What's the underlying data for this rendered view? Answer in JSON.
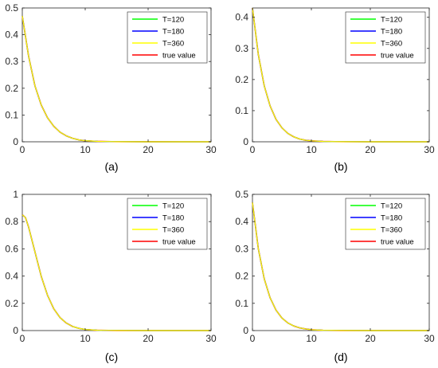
{
  "colors": {
    "T120": "#00ff00",
    "T180": "#0000ff",
    "T360": "#ffff00",
    "true_value": "#ff0000"
  },
  "chart_data": [
    {
      "type": "line",
      "caption": "(a)",
      "xlim": [
        0,
        30
      ],
      "ylim": [
        0,
        0.5
      ],
      "xticks": [
        "0",
        "10",
        "20",
        "30"
      ],
      "yticks": [
        "0",
        "0.1",
        "0.2",
        "0.3",
        "0.4",
        "0.5"
      ],
      "grid": false,
      "legend_position": "top-right",
      "x": [
        0,
        1,
        2,
        3,
        4,
        5,
        6,
        7,
        8,
        9,
        10,
        12,
        15,
        20,
        25,
        30
      ],
      "series": [
        {
          "name": "T=120",
          "color": "#00ff00",
          "values": [
            0.47,
            0.32,
            0.21,
            0.138,
            0.09,
            0.058,
            0.036,
            0.022,
            0.013,
            0.007,
            0.004,
            0.0015,
            0.0004,
            0.0001,
            0.0,
            0.0
          ]
        },
        {
          "name": "T=180",
          "color": "#0000ff",
          "values": [
            0.47,
            0.32,
            0.21,
            0.138,
            0.09,
            0.058,
            0.036,
            0.022,
            0.013,
            0.007,
            0.004,
            0.0015,
            0.0004,
            0.0001,
            0.0,
            0.0
          ]
        },
        {
          "name": "T=360",
          "color": "#ffff00",
          "values": [
            0.47,
            0.32,
            0.21,
            0.138,
            0.09,
            0.058,
            0.036,
            0.022,
            0.013,
            0.007,
            0.004,
            0.0015,
            0.0004,
            0.0001,
            0.0,
            0.0
          ]
        },
        {
          "name": "true value",
          "color": "#ff0000",
          "values": [
            0.47,
            0.32,
            0.21,
            0.138,
            0.09,
            0.058,
            0.036,
            0.022,
            0.013,
            0.007,
            0.004,
            0.0015,
            0.0004,
            0.0001,
            0.0,
            0.0
          ]
        }
      ]
    },
    {
      "type": "line",
      "caption": "(b)",
      "xlim": [
        0,
        30
      ],
      "ylim": [
        0,
        0.43
      ],
      "xticks": [
        "0",
        "10",
        "20",
        "30"
      ],
      "yticks": [
        "0",
        "0.1",
        "0.2",
        "0.3",
        "0.4"
      ],
      "grid": false,
      "legend_position": "top-right",
      "x": [
        0,
        1,
        2,
        3,
        4,
        5,
        6,
        7,
        8,
        9,
        10,
        12,
        15,
        20,
        25,
        30
      ],
      "series": [
        {
          "name": "T=120",
          "color": "#00ff00",
          "values": [
            0.43,
            0.28,
            0.18,
            0.115,
            0.072,
            0.045,
            0.027,
            0.016,
            0.009,
            0.005,
            0.003,
            0.001,
            0.0003,
            0.0,
            0.0,
            0.0
          ]
        },
        {
          "name": "T=180",
          "color": "#0000ff",
          "values": [
            0.43,
            0.28,
            0.18,
            0.115,
            0.072,
            0.045,
            0.027,
            0.016,
            0.009,
            0.005,
            0.003,
            0.001,
            0.0003,
            0.0,
            0.0,
            0.0
          ]
        },
        {
          "name": "T=360",
          "color": "#ffff00",
          "values": [
            0.43,
            0.28,
            0.18,
            0.115,
            0.072,
            0.045,
            0.027,
            0.016,
            0.009,
            0.005,
            0.003,
            0.001,
            0.0003,
            0.0,
            0.0,
            0.0
          ]
        },
        {
          "name": "true value",
          "color": "#ff0000",
          "values": [
            0.43,
            0.28,
            0.18,
            0.115,
            0.072,
            0.045,
            0.027,
            0.016,
            0.009,
            0.005,
            0.003,
            0.001,
            0.0003,
            0.0,
            0.0,
            0.0
          ]
        }
      ]
    },
    {
      "type": "line",
      "caption": "(c)",
      "xlim": [
        0,
        30
      ],
      "ylim": [
        0,
        1
      ],
      "xticks": [
        "0",
        "10",
        "20",
        "30"
      ],
      "yticks": [
        "0",
        "0.2",
        "0.4",
        "0.6",
        "0.8",
        "1"
      ],
      "grid": false,
      "legend_position": "top-right",
      "x": [
        0,
        0.5,
        1,
        2,
        3,
        4,
        5,
        6,
        7,
        8,
        9,
        10,
        12,
        15,
        20,
        25,
        30
      ],
      "series": [
        {
          "name": "T=120",
          "color": "#00ff00",
          "values": [
            0.85,
            0.83,
            0.76,
            0.58,
            0.4,
            0.26,
            0.16,
            0.095,
            0.055,
            0.03,
            0.016,
            0.008,
            0.002,
            0.0005,
            0.0,
            0.0,
            0.0
          ]
        },
        {
          "name": "T=180",
          "color": "#0000ff",
          "values": [
            0.85,
            0.83,
            0.76,
            0.58,
            0.4,
            0.26,
            0.16,
            0.095,
            0.055,
            0.03,
            0.016,
            0.008,
            0.002,
            0.0005,
            0.0,
            0.0,
            0.0
          ]
        },
        {
          "name": "T=360",
          "color": "#ffff00",
          "values": [
            0.85,
            0.83,
            0.76,
            0.58,
            0.4,
            0.26,
            0.16,
            0.095,
            0.055,
            0.03,
            0.016,
            0.008,
            0.002,
            0.0005,
            0.0,
            0.0,
            0.0
          ]
        },
        {
          "name": "true value",
          "color": "#ff0000",
          "values": [
            0.85,
            0.83,
            0.76,
            0.58,
            0.4,
            0.26,
            0.16,
            0.095,
            0.055,
            0.03,
            0.016,
            0.008,
            0.002,
            0.0005,
            0.0,
            0.0,
            0.0
          ]
        }
      ]
    },
    {
      "type": "line",
      "caption": "(d)",
      "xlim": [
        0,
        30
      ],
      "ylim": [
        0,
        0.5
      ],
      "xticks": [
        "0",
        "10",
        "20",
        "30"
      ],
      "yticks": [
        "0",
        "0.1",
        "0.2",
        "0.3",
        "0.4",
        "0.5"
      ],
      "grid": false,
      "legend_position": "top-right",
      "x": [
        0,
        1,
        2,
        3,
        4,
        5,
        6,
        7,
        8,
        9,
        10,
        12,
        15,
        20,
        25,
        30
      ],
      "series": [
        {
          "name": "T=120",
          "color": "#00ff00",
          "values": [
            0.47,
            0.3,
            0.19,
            0.12,
            0.075,
            0.046,
            0.028,
            0.017,
            0.01,
            0.006,
            0.003,
            0.001,
            0.0003,
            0.0,
            0.0,
            0.0
          ]
        },
        {
          "name": "T=180",
          "color": "#0000ff",
          "values": [
            0.47,
            0.3,
            0.19,
            0.12,
            0.075,
            0.046,
            0.028,
            0.017,
            0.01,
            0.006,
            0.003,
            0.001,
            0.0003,
            0.0,
            0.0,
            0.0
          ]
        },
        {
          "name": "T=360",
          "color": "#ffff00",
          "values": [
            0.47,
            0.3,
            0.19,
            0.12,
            0.075,
            0.046,
            0.028,
            0.017,
            0.01,
            0.006,
            0.003,
            0.001,
            0.0003,
            0.0,
            0.0,
            0.0
          ]
        },
        {
          "name": "true value",
          "color": "#ff0000",
          "values": [
            0.47,
            0.3,
            0.19,
            0.12,
            0.075,
            0.046,
            0.028,
            0.017,
            0.01,
            0.006,
            0.003,
            0.001,
            0.0003,
            0.0,
            0.0,
            0.0
          ]
        }
      ]
    }
  ]
}
